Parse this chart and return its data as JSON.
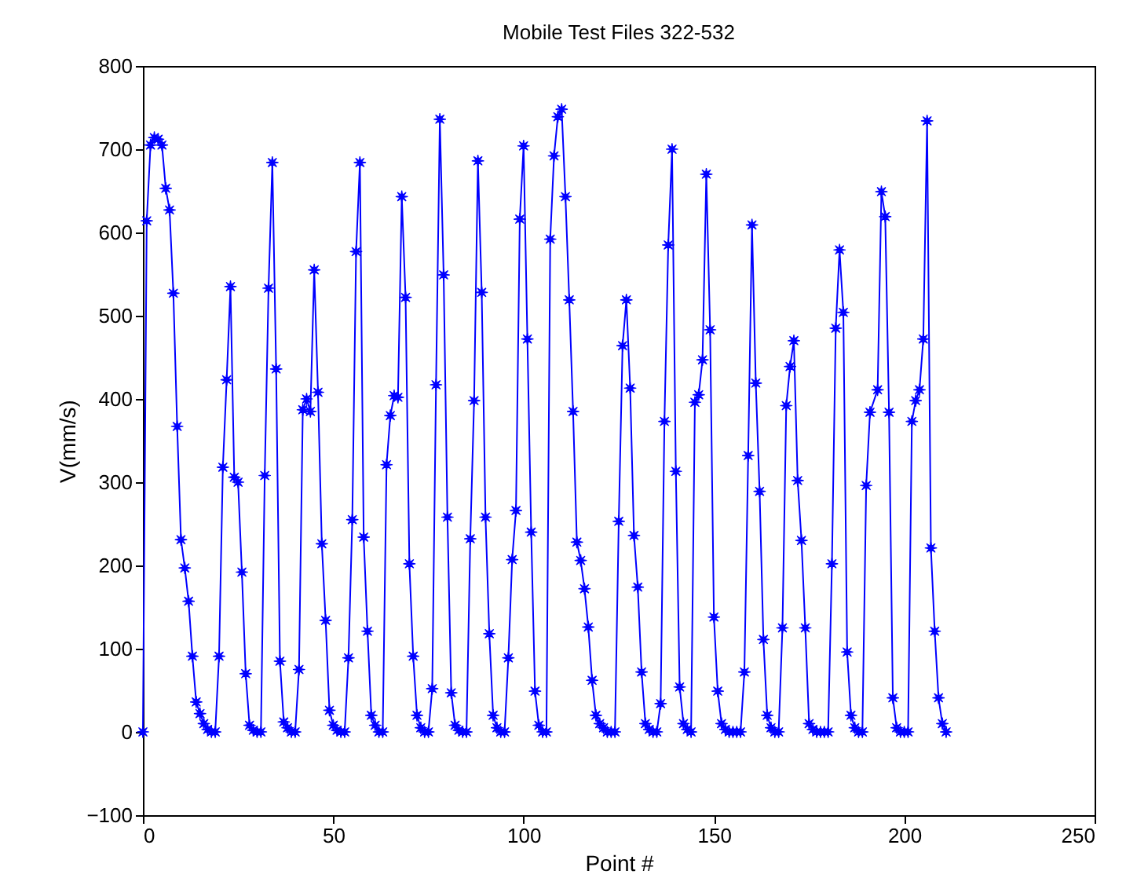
{
  "chart_data": {
    "type": "line",
    "title": "Mobile Test Files 322-532",
    "xlabel": "Point #",
    "ylabel": "V(mm/s)",
    "xlim": [
      0,
      250
    ],
    "xticks": [
      0,
      50,
      100,
      150,
      200,
      250
    ],
    "ylim": [
      -100,
      800
    ],
    "yticks": [
      -100,
      0,
      100,
      200,
      300,
      400,
      500,
      600,
      700,
      800
    ],
    "marker": "star",
    "line_style": "solid",
    "x": [
      0,
      1,
      2,
      3,
      4,
      5,
      6,
      7,
      8,
      9,
      10,
      11,
      12,
      13,
      14,
      15,
      16,
      17,
      18,
      19,
      20,
      21,
      22,
      23,
      24,
      25,
      26,
      27,
      28,
      29,
      30,
      31,
      32,
      33,
      34,
      35,
      36,
      37,
      38,
      39,
      40,
      41,
      42,
      43,
      44,
      45,
      46,
      47,
      48,
      49,
      50,
      51,
      52,
      53,
      54,
      55,
      56,
      57,
      58,
      59,
      60,
      61,
      62,
      63,
      64,
      65,
      66,
      67,
      68,
      69,
      70,
      71,
      72,
      73,
      74,
      75,
      76,
      77,
      78,
      79,
      80,
      81,
      82,
      83,
      84,
      85,
      86,
      87,
      88,
      89,
      90,
      91,
      92,
      93,
      94,
      95,
      96,
      97,
      98,
      99,
      100,
      101,
      102,
      103,
      104,
      105,
      106,
      107,
      108,
      109,
      110,
      111,
      112,
      113,
      114,
      115,
      116,
      117,
      118,
      119,
      120,
      121,
      122,
      123,
      124,
      125,
      126,
      127,
      128,
      129,
      130,
      131,
      132,
      133,
      134,
      135,
      136,
      137,
      138,
      139,
      140,
      141,
      142,
      143,
      144,
      145,
      146,
      147,
      148,
      149,
      150,
      151,
      152,
      153,
      154,
      155,
      156,
      157,
      158,
      159,
      160,
      161,
      162,
      163,
      164,
      165,
      166,
      167,
      168,
      169,
      170,
      171,
      172,
      173,
      174,
      175,
      176,
      177,
      178,
      179,
      180,
      181,
      182,
      183,
      184,
      185,
      186,
      187,
      188,
      189,
      190,
      191,
      193,
      194,
      195,
      196,
      197,
      198,
      199,
      200,
      201,
      202,
      203,
      204,
      205,
      206,
      207,
      208,
      209,
      210,
      211
    ],
    "series": [
      {
        "color": "#0000ff",
        "values": [
          0,
          614,
          705,
          714,
          712,
          705,
          653,
          627,
          527,
          367,
          231,
          197,
          157,
          91,
          36,
          22,
          10,
          3,
          0,
          0,
          91,
          318,
          423,
          535,
          306,
          300,
          192,
          70,
          8,
          2,
          0,
          0,
          308,
          533,
          684,
          436,
          85,
          12,
          5,
          0,
          0,
          75,
          387,
          400,
          385,
          555,
          408,
          226,
          134,
          26,
          8,
          2,
          0,
          0,
          89,
          255,
          577,
          684,
          234,
          121,
          20,
          8,
          0,
          0,
          321,
          380,
          404,
          402,
          643,
          522,
          202,
          91,
          20,
          5,
          0,
          0,
          52,
          417,
          736,
          549,
          258,
          47,
          8,
          2,
          0,
          0,
          232,
          398,
          686,
          528,
          258,
          118,
          20,
          5,
          0,
          0,
          89,
          207,
          266,
          616,
          704,
          472,
          240,
          49,
          8,
          0,
          0,
          592,
          692,
          739,
          748,
          643,
          519,
          385,
          228,
          206,
          172,
          126,
          62,
          20,
          10,
          5,
          0,
          0,
          0,
          253,
          464,
          519,
          413,
          236,
          174,
          72,
          10,
          3,
          0,
          0,
          34,
          373,
          585,
          700,
          313,
          54,
          10,
          3,
          0,
          396,
          405,
          447,
          670,
          483,
          138,
          49,
          10,
          3,
          0,
          0,
          0,
          0,
          72,
          332,
          609,
          419,
          289,
          111,
          20,
          5,
          0,
          0,
          125,
          392,
          439,
          470,
          302,
          230,
          125,
          10,
          3,
          0,
          0,
          0,
          0,
          202,
          485,
          579,
          504,
          96,
          20,
          5,
          0,
          0,
          296,
          384,
          411,
          649,
          619,
          384,
          41,
          5,
          0,
          0,
          0,
          373,
          398,
          411,
          472,
          734,
          221,
          121,
          41,
          10,
          0
        ]
      }
    ]
  }
}
